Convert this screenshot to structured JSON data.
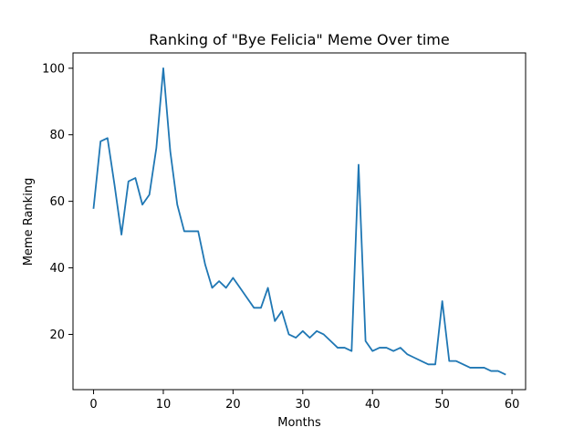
{
  "chart_data": {
    "type": "line",
    "title": "Ranking of \"Bye Felicia\" Meme Over time",
    "xlabel": "Months",
    "ylabel": "Meme Ranking",
    "xlim": [
      -2.95,
      61.95
    ],
    "ylim": [
      3.4,
      104.6
    ],
    "xticks": [
      0,
      10,
      20,
      30,
      40,
      50,
      60
    ],
    "yticks": [
      20,
      40,
      60,
      80,
      100
    ],
    "grid": false,
    "line_color": "#1f77b4",
    "series": [
      {
        "x": [
          0,
          1,
          2,
          3,
          4,
          5,
          6,
          7,
          8,
          9,
          10,
          11,
          12,
          13,
          14,
          15,
          16,
          17,
          18,
          19,
          20,
          21,
          22,
          23,
          24,
          25,
          26,
          27,
          28,
          29,
          30,
          31,
          32,
          33,
          34,
          35,
          36,
          37,
          38,
          39,
          40,
          41,
          42,
          43,
          44,
          45,
          46,
          47,
          48,
          49,
          50,
          51,
          52,
          53,
          54,
          55,
          56,
          57,
          58,
          59
        ],
        "values": [
          58,
          78,
          79,
          65,
          50,
          66,
          67,
          59,
          62,
          76,
          100,
          75,
          59,
          51,
          51,
          51,
          41,
          34,
          36,
          34,
          37,
          34,
          31,
          28,
          28,
          34,
          24,
          27,
          20,
          19,
          21,
          19,
          21,
          20,
          18,
          16,
          16,
          15,
          71,
          18,
          15,
          16,
          16,
          15,
          16,
          14,
          13,
          12,
          11,
          11,
          30,
          12,
          12,
          11,
          10,
          10,
          10,
          9,
          9,
          8
        ]
      }
    ]
  }
}
